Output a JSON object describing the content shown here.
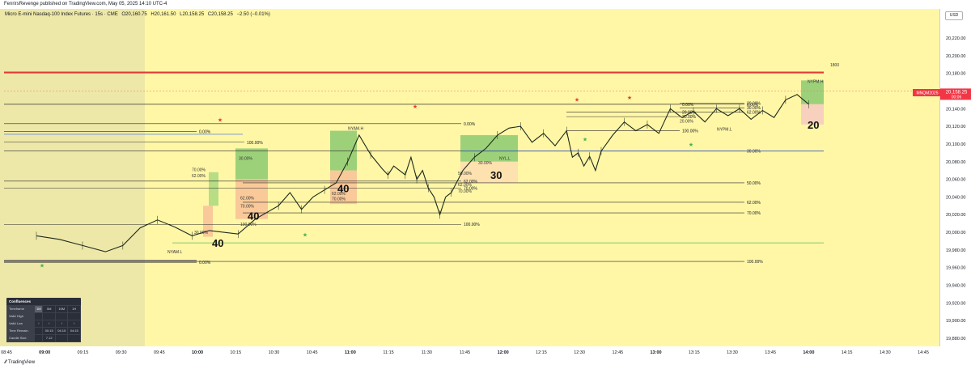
{
  "header": {
    "publisher": "FenrirsRevenge published on TradingView.com, May 05, 2025 14:10 UTC-4"
  },
  "symbol": {
    "name": "Micro E-mini Nasdaq-100 Index Futures · 15s · CME",
    "o": "O20,160.75",
    "h": "H20,161.50",
    "l": "L20,158.25",
    "c": "C20,158.25",
    "change": "−2.50 (−0.01%)"
  },
  "price_axis": {
    "currency": "USD",
    "last_price_label": "20,158.25",
    "countdown": "00:06",
    "symbol_tag": "MNQM2025"
  },
  "footer": {
    "brand": "TradingView"
  },
  "confluence": {
    "title": "Confluences",
    "rows": [
      {
        "label": "Timeframe",
        "cells": [
          "1M",
          "5M",
          "15M",
          "1H"
        ]
      },
      {
        "label": "Valid High",
        "cells": [
          "",
          "",
          "",
          ""
        ]
      },
      {
        "label": "Valid Low",
        "cells": [
          "↑",
          "↑",
          "↑",
          "↑"
        ]
      },
      {
        "label": "Time Remain.",
        "cells": [
          "",
          "00:15",
          "04:15",
          "04:15"
        ]
      },
      {
        "label": "Candle Size",
        "cells": [
          "",
          "7.12",
          "",
          ""
        ]
      }
    ]
  },
  "chart_data": {
    "type": "candlestick-annotated",
    "y_ticks": [
      20220,
      20200,
      20180,
      20160,
      20140,
      20120,
      20100,
      20080,
      20060,
      20040,
      20020,
      20000,
      19980,
      19960,
      19940,
      19920,
      19900,
      19880
    ],
    "x_ticks": [
      "08:45",
      "09:00",
      "09:15",
      "09:30",
      "09:45",
      "10:00",
      "10:15",
      "10:30",
      "10:45",
      "11:00",
      "11:15",
      "11:30",
      "11:45",
      "12:00",
      "12:15",
      "12:30",
      "12:45",
      "13:00",
      "13:15",
      "13:30",
      "13:45",
      "14:00",
      "14:15",
      "14:30",
      "14:45"
    ],
    "last_price": 20158.25,
    "price_path": [
      [
        0,
        19996
      ],
      [
        4,
        19992
      ],
      [
        8,
        19985
      ],
      [
        12,
        19978
      ],
      [
        15,
        19985
      ],
      [
        18,
        20005
      ],
      [
        21,
        20014
      ],
      [
        24,
        20006
      ],
      [
        27,
        19996
      ],
      [
        30,
        20002
      ],
      [
        35,
        19998
      ],
      [
        38,
        20015
      ],
      [
        42,
        20030
      ],
      [
        44,
        20045
      ],
      [
        46,
        20026
      ],
      [
        48,
        20040
      ],
      [
        50,
        20048
      ],
      [
        52,
        20056
      ],
      [
        54,
        20080
      ],
      [
        56,
        20110
      ],
      [
        58,
        20088
      ],
      [
        60,
        20072
      ],
      [
        61,
        20065
      ],
      [
        62,
        20075
      ],
      [
        64,
        20065
      ],
      [
        65,
        20085
      ],
      [
        66,
        20060
      ],
      [
        67,
        20070
      ],
      [
        68,
        20050
      ],
      [
        69,
        20040
      ],
      [
        70,
        20020
      ],
      [
        71,
        20040
      ],
      [
        72,
        20045
      ],
      [
        74,
        20070
      ],
      [
        76,
        20085
      ],
      [
        78,
        20095
      ],
      [
        80,
        20110
      ],
      [
        82,
        20118
      ],
      [
        84,
        20120
      ],
      [
        86,
        20102
      ],
      [
        88,
        20112
      ],
      [
        90,
        20098
      ],
      [
        92,
        20115
      ],
      [
        93,
        20085
      ],
      [
        94,
        20090
      ],
      [
        95,
        20075
      ],
      [
        96,
        20086
      ],
      [
        97,
        20070
      ],
      [
        98,
        20092
      ],
      [
        100,
        20110
      ],
      [
        102,
        20125
      ],
      [
        104,
        20115
      ],
      [
        106,
        20122
      ],
      [
        108,
        20112
      ],
      [
        110,
        20140
      ],
      [
        112,
        20130
      ],
      [
        114,
        20137
      ],
      [
        116,
        20125
      ],
      [
        118,
        20140
      ],
      [
        120,
        20132
      ],
      [
        122,
        20140
      ],
      [
        124,
        20128
      ],
      [
        126,
        20138
      ],
      [
        128,
        20130
      ],
      [
        130,
        20150
      ],
      [
        132,
        20156
      ],
      [
        134,
        20145
      ]
    ],
    "levels": [
      {
        "label": "0.00%",
        "price": 19966
      },
      {
        "label": "100.00%",
        "price": 20102
      },
      {
        "label": "0.00%",
        "price": 20114
      },
      {
        "label": "100.00%",
        "price": 20009
      },
      {
        "label": "70.00%",
        "price": 20050
      },
      {
        "label": "62.00%",
        "price": 20058
      },
      {
        "label": "0.00%",
        "price": 20123
      },
      {
        "label": "30.00%",
        "price": 20092
      },
      {
        "label": "50.00%",
        "price": 20056
      },
      {
        "label": "62.00%",
        "price": 20034
      },
      {
        "label": "70.00%",
        "price": 20022
      },
      {
        "label": "100.00%",
        "price": 19967
      },
      {
        "label": "0.00%",
        "price": 20145
      },
      {
        "label": "0.00%",
        "price": 20145
      },
      {
        "label": "20.00%",
        "price": 20136
      },
      {
        "label": "30.00%",
        "price": 20131
      },
      {
        "label": "20.00%",
        "price": 20146
      },
      {
        "label": "30.00%",
        "price": 20141
      },
      {
        "label": "62.00%",
        "price": 20136
      },
      {
        "label": "100.00%",
        "price": 20115
      }
    ],
    "fib_tags": [
      {
        "label": "70.00%",
        "price": 20071
      },
      {
        "label": "62.00%",
        "price": 20064
      },
      {
        "label": "30.00%",
        "price": 20084
      },
      {
        "label": "62.00%",
        "price": 20039
      },
      {
        "label": "70.00%",
        "price": 20030
      },
      {
        "label": "62.00%",
        "price": 20044
      },
      {
        "label": "70.00%",
        "price": 20038
      },
      {
        "label": "30.00%",
        "price": 20000
      },
      {
        "label": "100.00%",
        "price": 20009
      },
      {
        "label": "50.00%",
        "price": 20067
      },
      {
        "label": "62.00%",
        "price": 20054
      },
      {
        "label": "70.00%",
        "price": 20047
      },
      {
        "label": "30.00%",
        "price": 20079
      },
      {
        "label": "20.00%",
        "price": 20126
      }
    ],
    "session_labels": [
      {
        "label": "NYAM.L",
        "price": 19978
      },
      {
        "label": "NYAM.H",
        "price": 20118
      },
      {
        "label": "NYPM.L",
        "price": 20117
      },
      {
        "label": "NYPM.H",
        "price": 20171
      },
      {
        "label": "NYL.L",
        "price": 20084
      }
    ],
    "zone_numbers": [
      {
        "label": "40",
        "price": 19988
      },
      {
        "label": "40",
        "price": 20019
      },
      {
        "label": "40",
        "price": 20050
      },
      {
        "label": "30",
        "price": 20065
      },
      {
        "label": "20",
        "price": 20122
      }
    ],
    "top_label": "1800"
  }
}
